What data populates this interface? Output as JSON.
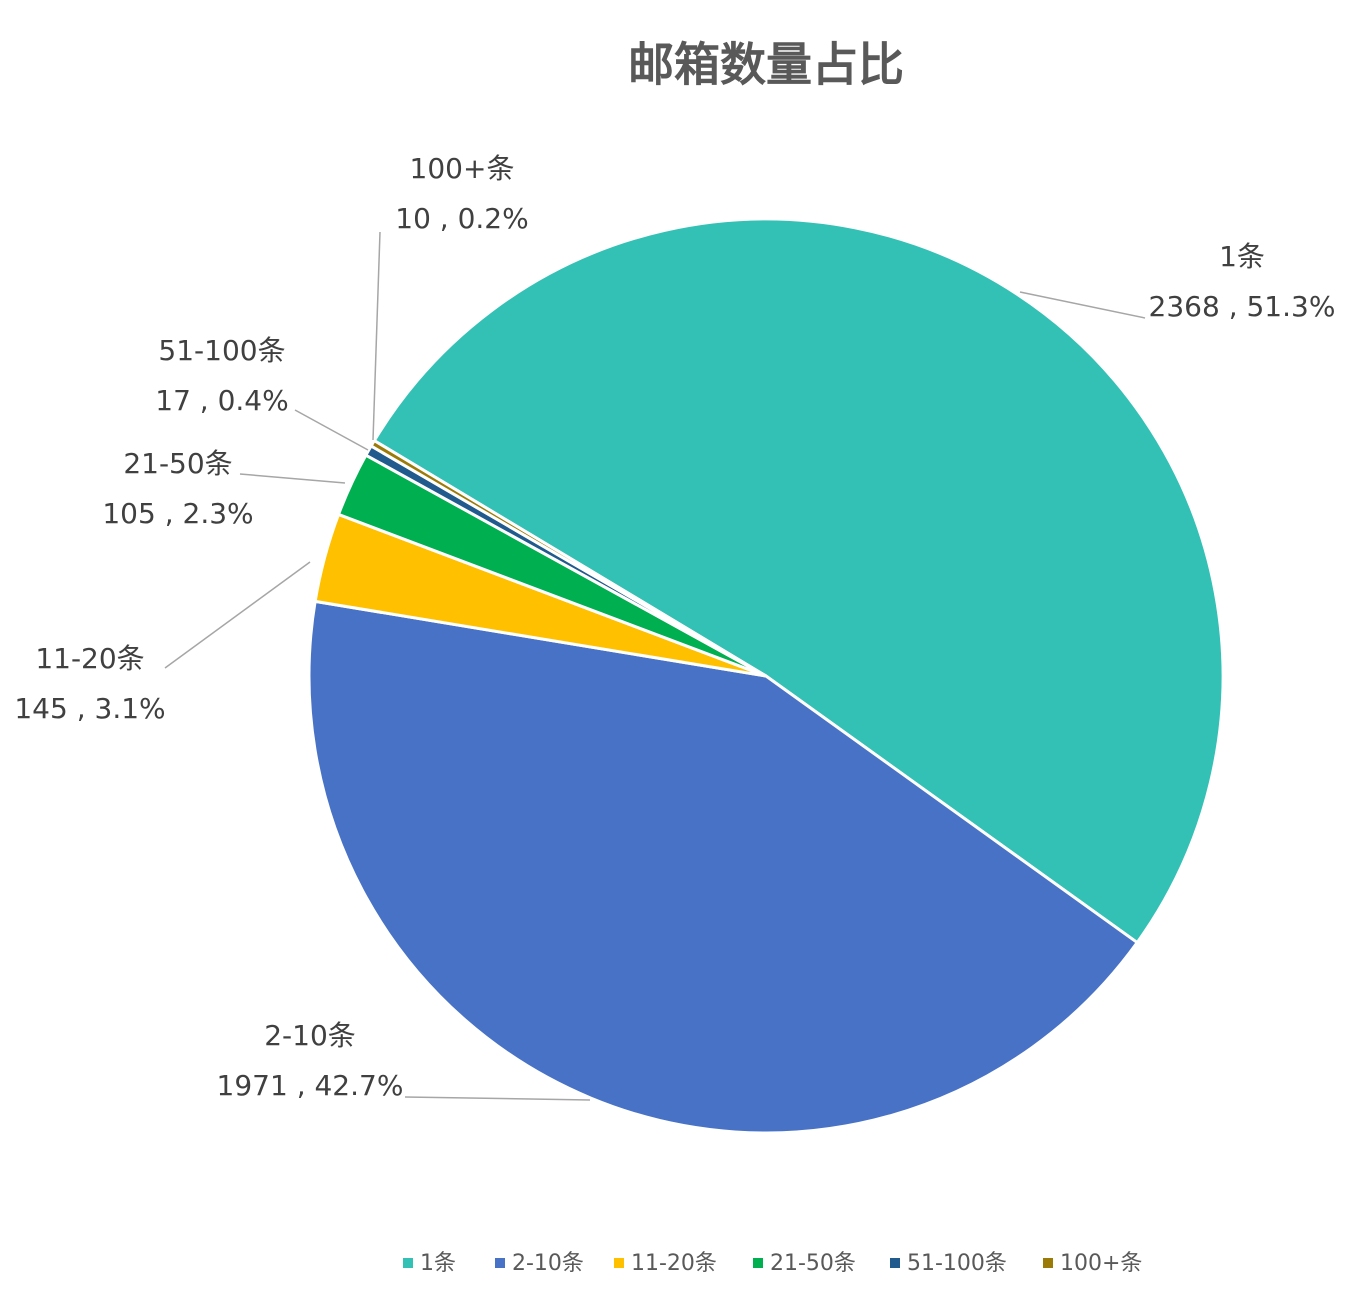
{
  "chart_data": {
    "type": "pie",
    "title": "邮箱数量占比",
    "categories": [
      "1条",
      "2-10条",
      "11-20条",
      "21-50条",
      "51-100条",
      "100+条"
    ],
    "values": [
      2368,
      1971,
      145,
      105,
      17,
      10
    ],
    "value_labels": [
      "2368 , 51.3%",
      "1971 , 42.7%",
      "145 , 3.1%",
      "105 , 2.3%",
      "17 , 0.4%",
      "10 , 0.2%"
    ],
    "colors": [
      "#33c1b5",
      "#4872c6",
      "#ffc000",
      "#00b050",
      "#215a8c",
      "#9c7a08"
    ],
    "legend": "bottom"
  }
}
